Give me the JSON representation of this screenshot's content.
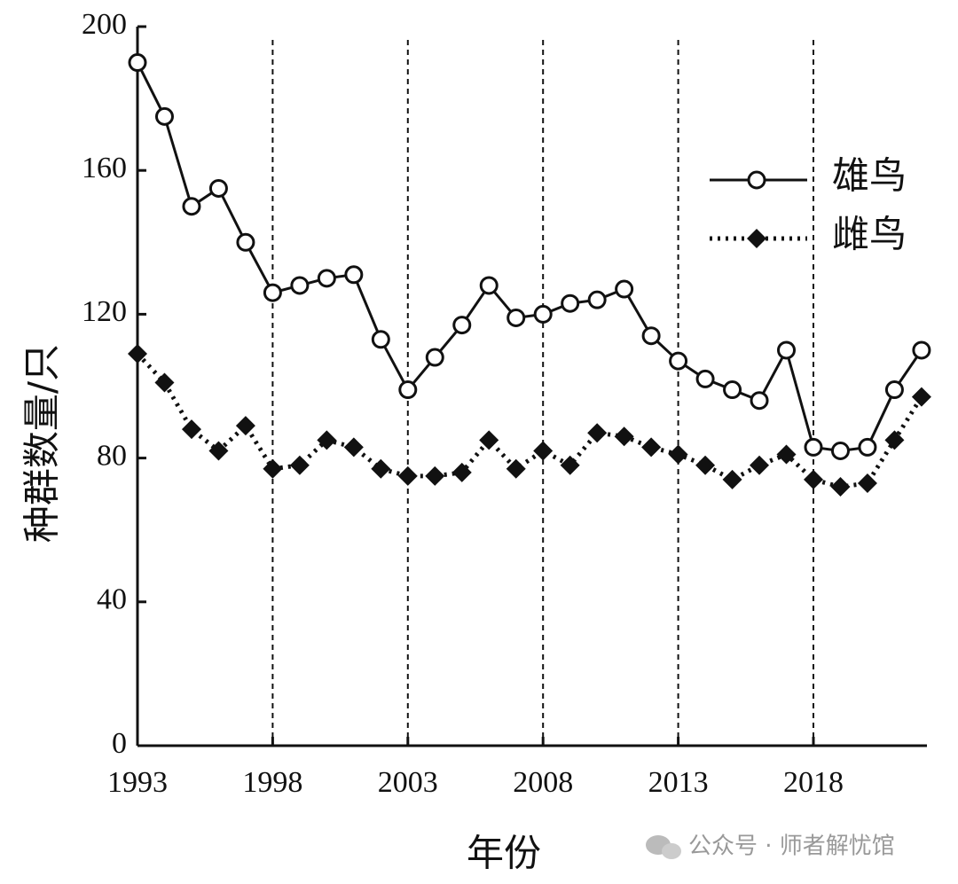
{
  "chart_data": {
    "type": "line",
    "x_label": "年份",
    "y_label": "种群数量/只",
    "x": [
      1993,
      1994,
      1995,
      1996,
      1997,
      1998,
      1999,
      2000,
      2001,
      2002,
      2003,
      2004,
      2005,
      2006,
      2007,
      2008,
      2009,
      2010,
      2011,
      2012,
      2013,
      2014,
      2015,
      2016,
      2017,
      2018,
      2019,
      2020,
      2021,
      2022
    ],
    "series": [
      {
        "name": "雄鸟",
        "color": "#111111",
        "marker": "circle",
        "line": "solid",
        "values": [
          190,
          175,
          150,
          155,
          140,
          126,
          128,
          130,
          131,
          113,
          99,
          108,
          117,
          128,
          119,
          120,
          123,
          124,
          127,
          114,
          107,
          102,
          99,
          96,
          110,
          83,
          82,
          83,
          99,
          110
        ]
      },
      {
        "name": "雌鸟",
        "color": "#111111",
        "marker": "diamond",
        "line": "dotted",
        "values": [
          109,
          101,
          88,
          82,
          89,
          77,
          78,
          85,
          83,
          77,
          75,
          75,
          76,
          85,
          77,
          82,
          78,
          87,
          86,
          83,
          81,
          78,
          74,
          78,
          81,
          74,
          72,
          73,
          85,
          97
        ]
      }
    ],
    "xlim": [
      1993,
      2022.2
    ],
    "xticks": [
      1993,
      1998,
      2003,
      2008,
      2013,
      2018
    ],
    "ylim": [
      0,
      200
    ],
    "yticks": [
      0,
      40,
      80,
      120,
      160,
      200
    ],
    "x_grid": true,
    "legend": "upper right",
    "watermark": "公众号 · 师者解忧馆"
  }
}
